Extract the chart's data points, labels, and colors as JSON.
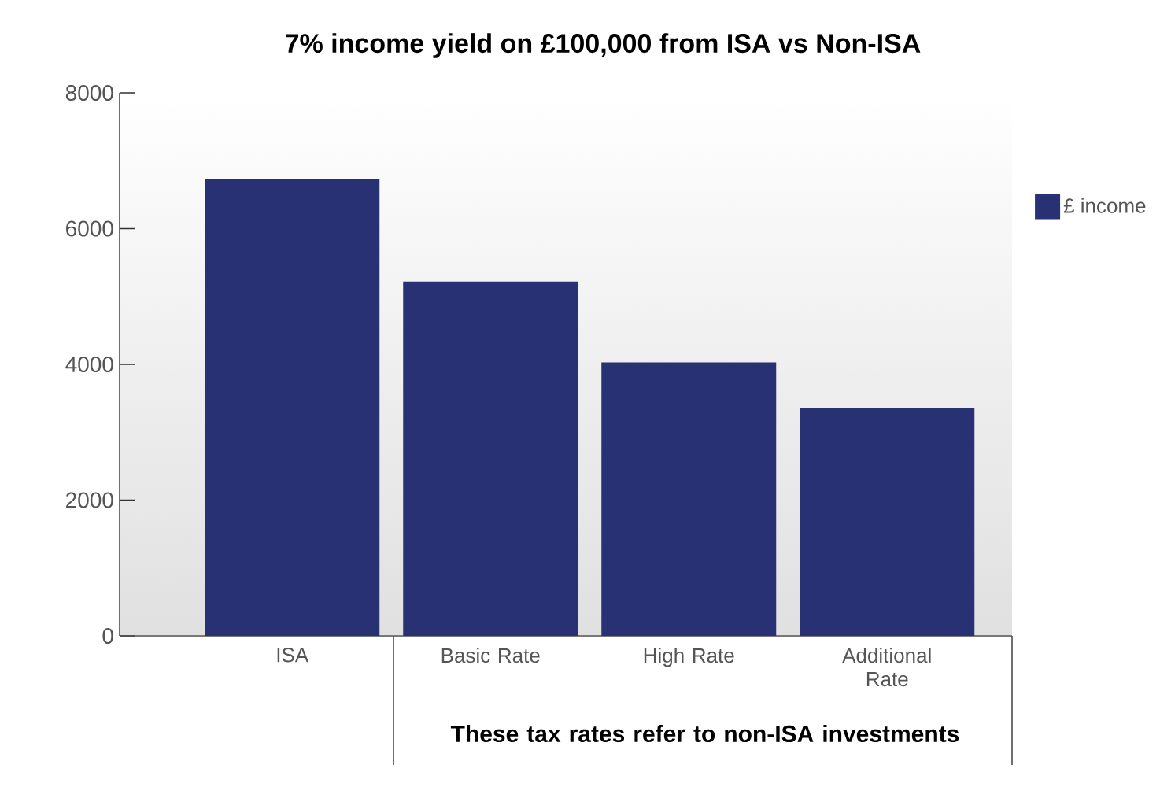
{
  "chart_data": {
    "type": "bar",
    "title": "7% income yield on £100,000 from ISA vs Non-ISA",
    "categories": [
      "ISA",
      "Basic Rate",
      "High Rate",
      "Additional Rate"
    ],
    "series": [
      {
        "name": "£ income",
        "color": "#283173",
        "values": [
          6730,
          5220,
          4030,
          3360
        ]
      }
    ],
    "ylim": [
      0,
      8000
    ],
    "yticks": [
      0,
      2000,
      4000,
      6000,
      8000
    ],
    "grid": false,
    "legend": "right",
    "annotations": [
      "These tax rates refer to non-ISA investments"
    ]
  }
}
